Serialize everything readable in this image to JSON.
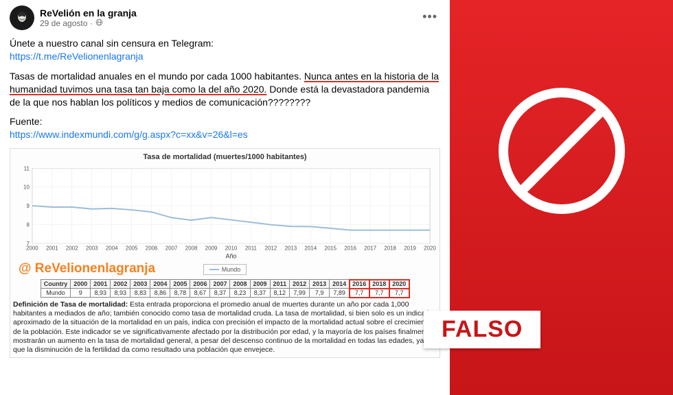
{
  "post": {
    "page_name": "ReVelión en la granja",
    "date": "29 de agosto",
    "globe_icon": "🌐",
    "intro": "Únete a nuestro canal sin censura en Telegram:",
    "telegram_link": "https://t.me/ReVelionenlagranja",
    "text_before": "Tasas de mortalidad anuales en el mundo por cada 1000 habitantes. ",
    "text_underlined": "Nunca antes en la historia de la humanidad tuvimos una tasa tan baja como la del año 2020.",
    "text_after": " Donde está la devastadora pandemia de la que nos hablan los políticos y medios de comunicación????????",
    "source_label": "Fuente:",
    "source_link": "https://www.indexmundi.com/g/g.aspx?c=xx&v=26&l=es"
  },
  "chart": {
    "title": "Tasa de mortalidad (muertes/1000 habitantes)",
    "xlabel": "Año",
    "legend_label": "Mundo",
    "watermark": "@ ReVelionenlagranja",
    "years": [
      2000,
      2001,
      2002,
      2003,
      2004,
      2005,
      2006,
      2007,
      2008,
      2009,
      2010,
      2011,
      2012,
      2013,
      2014,
      2015,
      2016,
      2017,
      2018,
      2019,
      2020
    ],
    "values": [
      9.0,
      8.93,
      8.93,
      8.83,
      8.86,
      8.78,
      8.67,
      8.37,
      8.23,
      8.37,
      8.25,
      8.12,
      7.99,
      7.9,
      7.89,
      7.8,
      7.7,
      7.7,
      7.7,
      7.7,
      7.7
    ],
    "ylim": [
      7,
      11
    ],
    "yticks": [
      7,
      8,
      9,
      10,
      11
    ],
    "line_color": "#9bbdd9",
    "line_width": 2,
    "grid_color": "#e8e8e8",
    "axis_color": "#888888",
    "tick_font_size": 8,
    "background": "#ffffff"
  },
  "table": {
    "header_first": "Country",
    "row_label": "Mundo",
    "cols": [
      "2000",
      "2001",
      "2002",
      "2003",
      "2004",
      "2005",
      "2006",
      "2007",
      "2008",
      "2009",
      "2011",
      "2012",
      "2013",
      "2014",
      "2016",
      "2018",
      "2020"
    ],
    "vals": [
      "9",
      "8,93",
      "8,93",
      "8,83",
      "8,86",
      "8,78",
      "8,67",
      "8,37",
      "8,23",
      "8,37",
      "8,12",
      "7,99",
      "7,9",
      "7,89",
      "7,7",
      "7,7",
      "7,7"
    ],
    "highlight_start": 14
  },
  "definition": {
    "label": "Definición de Tasa de mortalidad:",
    "text": " Esta entrada proporciona el promedio anual de muertes durante un año por cada 1,000 habitantes a mediados de año; también conocido como tasa de mortalidad cruda. La tasa de mortalidad, si bien solo es un indicador aproximado de la situación de la mortalidad en un país, indica con precisión el impacto de la mortalidad actual sobre el crecimiento de la población. Este indicador se ve significativamente afectado por la distribución por edad, y la mayoría de los países finalmente mostrarán un aumento en la tasa de mortalidad general, a pesar del descenso continuo de la mortalidad en todas las edades, ya que la disminución de la fertilidad da como resultado una población que envejece."
  },
  "overlay": {
    "label": "FALSO",
    "circle_stroke": "#ffffff",
    "circle_stroke_width": 10,
    "bg_gradient_top": "#e52427",
    "bg_gradient_bottom": "#c71518"
  }
}
